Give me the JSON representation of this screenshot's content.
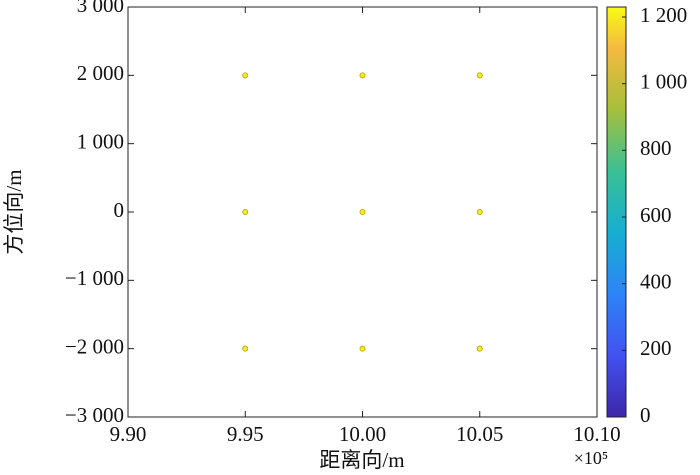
{
  "chart_data": {
    "type": "scatter",
    "x_label": "距离向/m",
    "y_label": "方位向/m",
    "x_exponent_label": "×10⁵",
    "x": [
      9.95,
      10.0,
      10.05,
      9.95,
      10.0,
      10.05,
      9.95,
      10.0,
      10.05
    ],
    "y": [
      2000,
      2000,
      2000,
      0,
      0,
      0,
      -2000,
      -2000,
      -2000
    ],
    "color_values": [
      1200,
      1200,
      1200,
      1200,
      1200,
      1200,
      1200,
      1200,
      1200
    ],
    "xlim": [
      9.9,
      10.1
    ],
    "xticks": [
      {
        "value": 9.9,
        "label": "9.90"
      },
      9.95,
      {
        "value": 10,
        "label": "10.00"
      },
      10.05,
      {
        "value": 10.1,
        "label": "10.10"
      }
    ],
    "ylim": [
      -3000,
      3000
    ],
    "yticks": [
      {
        "value": -3000,
        "label": "−3 000"
      },
      {
        "value": -2000,
        "label": "−2 000"
      },
      {
        "value": -1000,
        "label": "−1 000"
      },
      0,
      {
        "value": 1000,
        "label": "1 000"
      },
      {
        "value": 2000,
        "label": "2 000"
      },
      {
        "value": 3000,
        "label": "3 000"
      }
    ],
    "clim": [
      0,
      1230
    ],
    "cticks": [
      0,
      200,
      400,
      600,
      800,
      {
        "value": 1000,
        "label": "1 000"
      },
      {
        "value": 1200,
        "label": "1 200"
      }
    ]
  }
}
